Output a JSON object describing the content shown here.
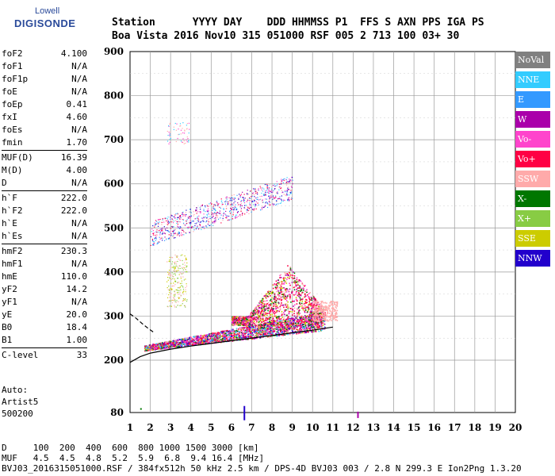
{
  "logo": {
    "line1": "Lowell",
    "line2": "DIGISONDE"
  },
  "header": {
    "line1": "Station      YYYY DAY    DDD HHMMSS P1  FFS S AXN PPS IGA PS",
    "line2": "Boa Vista 2016 Nov10 315 051000 RSF 005 2 713 100 03+ 30"
  },
  "params": [
    {
      "name": "foF2",
      "value": "4.100"
    },
    {
      "name": "foF1",
      "value": "N/A"
    },
    {
      "name": "foF1p",
      "value": "N/A"
    },
    {
      "name": "foE",
      "value": "N/A"
    },
    {
      "name": "foEp",
      "value": "0.41"
    },
    {
      "name": "fxI",
      "value": "4.60"
    },
    {
      "name": "foEs",
      "value": "N/A"
    },
    {
      "name": "fmin",
      "value": "1.70"
    },
    {
      "name": "MUF(D)",
      "value": "16.39"
    },
    {
      "name": "M(D)",
      "value": "4.00"
    },
    {
      "name": "D",
      "value": "N/A"
    },
    {
      "name": "h`F",
      "value": "222.0"
    },
    {
      "name": "h`F2",
      "value": "222.0"
    },
    {
      "name": "h`E",
      "value": "N/A"
    },
    {
      "name": "h`Es",
      "value": "N/A"
    },
    {
      "name": "hmF2",
      "value": "230.3"
    },
    {
      "name": "hmF1",
      "value": "N/A"
    },
    {
      "name": "hmE",
      "value": "110.0"
    },
    {
      "name": "yF2",
      "value": "14.2"
    },
    {
      "name": "yF1",
      "value": "N/A"
    },
    {
      "name": "yE",
      "value": "20.0"
    },
    {
      "name": "B0",
      "value": "18.4"
    },
    {
      "name": "B1",
      "value": "1.00"
    },
    {
      "name": "C-level",
      "value": "33"
    }
  ],
  "auto": {
    "line1": "Auto:",
    "line2": "Artist5",
    "line3": "500200"
  },
  "legend": [
    {
      "label": "NoVal",
      "color": "#808080"
    },
    {
      "label": "NNE",
      "color": "#33ccff"
    },
    {
      "label": "E",
      "color": "#3399ff"
    },
    {
      "label": "W",
      "color": "#aa00aa"
    },
    {
      "label": "Vo-",
      "color": "#ff44cc"
    },
    {
      "label": "Vo+",
      "color": "#ff0044"
    },
    {
      "label": "SSW",
      "color": "#ffaaaa"
    },
    {
      "label": "X-",
      "color": "#007700"
    },
    {
      "label": "X+",
      "color": "#88cc44"
    },
    {
      "label": "SSE",
      "color": "#cccc00"
    },
    {
      "label": "NNW",
      "color": "#2200cc"
    }
  ],
  "footer": {
    "line1": "D     100  200  400  600  800 1000 1500 3000 [km]",
    "line2": "MUF   4.5  4.5  4.8  5.2  5.9  6.8  9.4 16.4 [MHz]",
    "line3": "BVJ03_2016315051000.RSF / 384fx512h 50 kHz 2.5 km / DPS-4D BVJ03 003 / 2.8 N 299.3 E Ion2Png 1.3.20"
  },
  "chart_data": {
    "type": "scatter",
    "xlim": [
      1,
      20
    ],
    "ylim": [
      80,
      900
    ],
    "xticks": [
      "1",
      "2",
      "3",
      "4",
      "5",
      "6",
      "7",
      "8",
      "9",
      "10",
      "11",
      "12",
      "13",
      "14",
      "15",
      "16",
      "17",
      "18",
      "19",
      "20"
    ],
    "yticks": [
      "80",
      "200",
      "300",
      "400",
      "500",
      "600",
      "700",
      "800",
      "900"
    ],
    "ytick_values": [
      80,
      200,
      300,
      400,
      500,
      600,
      700,
      800,
      900
    ],
    "grid": true,
    "trace_solid": {
      "x": [
        1.0,
        1.5,
        2.0,
        3.0,
        4.0,
        5.0,
        6.0,
        7.0,
        8.0,
        9.0,
        10.0,
        11.0
      ],
      "y": [
        195,
        208,
        216,
        225,
        232,
        238,
        244,
        250,
        256,
        262,
        268,
        275
      ]
    },
    "trace_dashed": {
      "x": [
        1.0,
        1.3,
        1.6,
        1.9,
        2.2
      ],
      "y": [
        305,
        295,
        283,
        272,
        262
      ]
    },
    "echo_regions": [
      {
        "name": "F-trace",
        "x": [
          1.7,
          10.5
        ],
        "y": [
          215,
          300
        ],
        "color": "Vo+"
      },
      {
        "name": "F-upper",
        "x": [
          6.0,
          10.5
        ],
        "y": [
          290,
          380
        ],
        "color": "Vo-"
      },
      {
        "name": "spread",
        "x": [
          8.0,
          10.0
        ],
        "y": [
          300,
          430
        ],
        "color": "SSW"
      },
      {
        "name": "multi-hop",
        "x": [
          2.0,
          9.0
        ],
        "y": [
          450,
          620
        ],
        "color": "Vo-"
      },
      {
        "name": "high-echo",
        "x": [
          2.8,
          3.8
        ],
        "y": [
          690,
          740
        ],
        "color": "SSW"
      }
    ]
  }
}
